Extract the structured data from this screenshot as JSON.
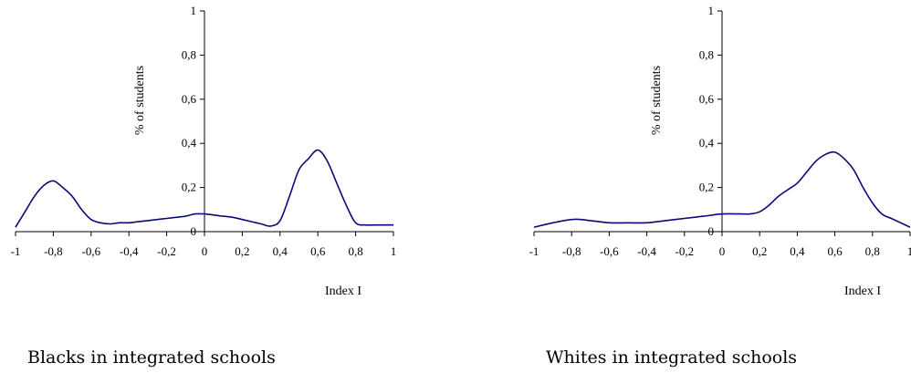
{
  "chart_data": [
    {
      "type": "line",
      "caption": "Blacks in integrated schools",
      "xlabel": "Index I",
      "ylabel": "% of students",
      "xlim": [
        -1,
        1
      ],
      "ylim": [
        0,
        1
      ],
      "x_ticks": [
        "-1",
        "-0,8",
        "-0,6",
        "-0,4",
        "-0,2",
        "0",
        "0,2",
        "0,4",
        "0,6",
        "0,8",
        "1"
      ],
      "y_ticks": [
        "0",
        "0,2",
        "0,4",
        "0,6",
        "0,8",
        "1"
      ],
      "series": [
        {
          "color": "#0a0a78",
          "x": [
            -1,
            -0.95,
            -0.9,
            -0.85,
            -0.8,
            -0.75,
            -0.7,
            -0.65,
            -0.6,
            -0.55,
            -0.5,
            -0.45,
            -0.4,
            -0.35,
            -0.3,
            -0.25,
            -0.2,
            -0.15,
            -0.1,
            -0.05,
            0,
            0.05,
            0.1,
            0.15,
            0.2,
            0.25,
            0.3,
            0.35,
            0.4,
            0.45,
            0.5,
            0.55,
            0.6,
            0.65,
            0.7,
            0.75,
            0.8,
            0.85,
            0.9,
            0.95,
            1
          ],
          "y": [
            0.02,
            0.09,
            0.16,
            0.21,
            0.23,
            0.2,
            0.16,
            0.1,
            0.055,
            0.04,
            0.035,
            0.04,
            0.04,
            0.045,
            0.05,
            0.055,
            0.06,
            0.065,
            0.07,
            0.08,
            0.08,
            0.075,
            0.07,
            0.065,
            0.055,
            0.045,
            0.035,
            0.025,
            0.05,
            0.16,
            0.28,
            0.33,
            0.37,
            0.32,
            0.22,
            0.12,
            0.04,
            0.03,
            0.03,
            0.03,
            0.03
          ]
        }
      ]
    },
    {
      "type": "line",
      "caption": "Whites in integrated schools",
      "xlabel": "Index I",
      "ylabel": "% of students",
      "xlim": [
        -1,
        1
      ],
      "ylim": [
        0,
        1
      ],
      "x_ticks": [
        "-1",
        "-0,8",
        "-0,6",
        "-0,4",
        "-0,2",
        "0",
        "0,2",
        "0,4",
        "0,6",
        "0,8",
        "1"
      ],
      "y_ticks": [
        "0",
        "0,2",
        "0,4",
        "0,6",
        "0,8",
        "1"
      ],
      "series": [
        {
          "color": "#0a0a78",
          "x": [
            -1,
            -0.9,
            -0.8,
            -0.75,
            -0.7,
            -0.6,
            -0.5,
            -0.4,
            -0.3,
            -0.2,
            -0.1,
            0,
            0.1,
            0.15,
            0.2,
            0.25,
            0.3,
            0.35,
            0.4,
            0.45,
            0.5,
            0.55,
            0.6,
            0.65,
            0.7,
            0.75,
            0.8,
            0.85,
            0.9,
            0.95,
            1
          ],
          "y": [
            0.02,
            0.04,
            0.055,
            0.055,
            0.05,
            0.04,
            0.04,
            0.04,
            0.05,
            0.06,
            0.07,
            0.08,
            0.08,
            0.08,
            0.09,
            0.12,
            0.16,
            0.19,
            0.22,
            0.27,
            0.32,
            0.35,
            0.36,
            0.33,
            0.28,
            0.2,
            0.13,
            0.08,
            0.06,
            0.04,
            0.02
          ]
        }
      ]
    }
  ]
}
